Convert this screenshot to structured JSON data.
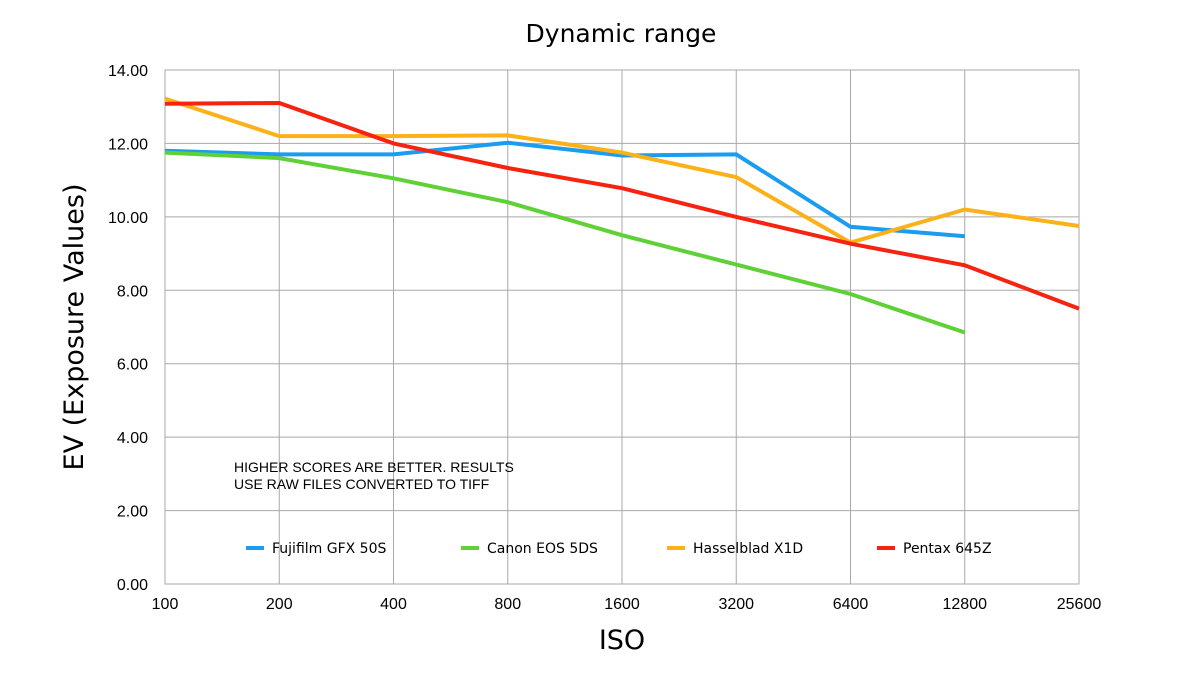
{
  "chart_data": {
    "type": "line",
    "title": "Dynamic range",
    "xlabel": "ISO",
    "ylabel": "EV  (Exposure Values)",
    "x": [
      "100",
      "200",
      "400",
      "800",
      "1600",
      "3200",
      "6400",
      "12800",
      "25600"
    ],
    "x_scale": "log2",
    "ylim": [
      0,
      14
    ],
    "y_ticks": [
      "0.00",
      "2.00",
      "4.00",
      "6.00",
      "8.00",
      "10.00",
      "12.00",
      "14.00"
    ],
    "grid": true,
    "legend_position": "bottom-inside",
    "annotation": [
      "HIGHER SCORES ARE BETTER. RESULTS",
      "USE RAW FILES CONVERTED TO TIFF"
    ],
    "series": [
      {
        "name": "Fujifilm GFX 50S",
        "color": "#1a9cf0",
        "values": [
          11.8,
          11.7,
          11.7,
          12.02,
          11.67,
          11.7,
          9.73,
          9.47,
          null
        ]
      },
      {
        "name": "Canon EOS 5DS",
        "color": "#5fd136",
        "values": [
          11.75,
          11.6,
          11.05,
          10.4,
          9.5,
          8.7,
          7.9,
          6.85,
          null
        ]
      },
      {
        "name": "Hasselblad X1D",
        "color": "#fbb117",
        "values": [
          13.22,
          12.2,
          12.2,
          12.22,
          11.75,
          11.08,
          9.3,
          10.2,
          9.75
        ]
      },
      {
        "name": "Pentax 645Z",
        "color": "#f5230f",
        "values": [
          13.08,
          13.1,
          12.0,
          11.33,
          10.78,
          10.0,
          9.27,
          8.68,
          7.5
        ]
      }
    ]
  }
}
